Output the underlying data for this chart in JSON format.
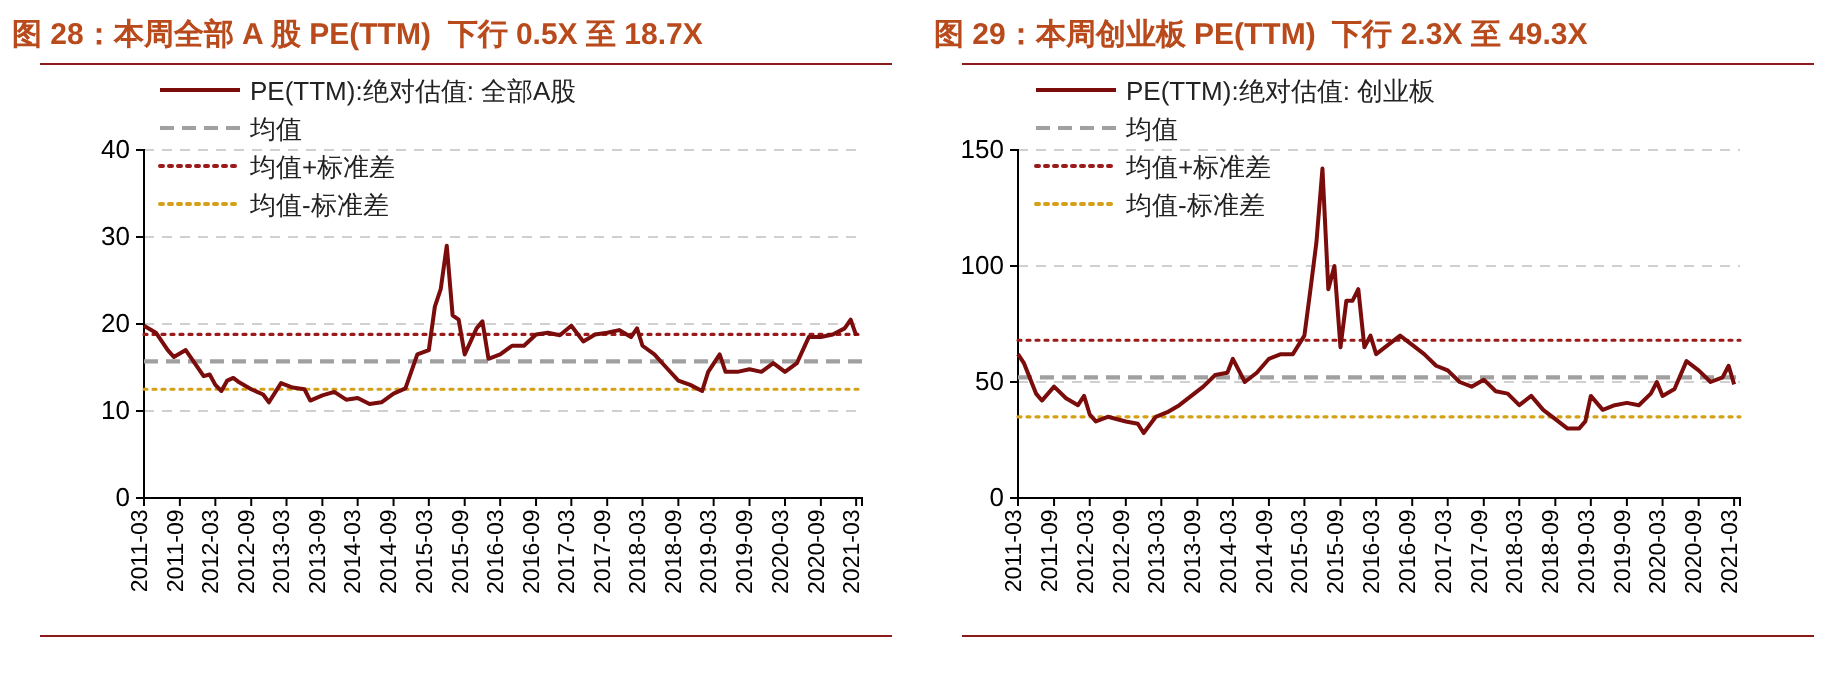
{
  "chart_data": [
    {
      "type": "line",
      "title": "图 28：本周全部 A 股 PE(TTM)  下行 0.5X 至 18.7X",
      "legend": "top left",
      "grid": "y",
      "line_style": "solid",
      "marker": "none",
      "xlim": [
        "2011-03-01",
        "2021-03-31"
      ],
      "ylim": [
        0,
        40
      ],
      "yticks": [
        0,
        10,
        20,
        30,
        40
      ],
      "xticks": [
        {
          "value": "2011-03",
          "label": "2011-03"
        },
        {
          "value": "2011-09",
          "label": "2011-09"
        },
        {
          "value": "2012-03",
          "label": "2012-03"
        },
        {
          "value": "2012-09",
          "label": "2012-09"
        },
        {
          "value": "2013-03",
          "label": "2013-03"
        },
        {
          "value": "2013-09",
          "label": "2013-09"
        },
        {
          "value": "2014-03",
          "label": "2014-03"
        },
        {
          "value": "2014-09",
          "label": "2014-09"
        },
        {
          "value": "2015-03",
          "label": "2015-03"
        },
        {
          "value": "2015-09",
          "label": "2015-09"
        },
        {
          "value": "2016-03",
          "label": "2016-03"
        },
        {
          "value": "2016-09",
          "label": "2016-09"
        },
        {
          "value": "2017-03",
          "label": "2017-03"
        },
        {
          "value": "2017-09",
          "label": "2017-09"
        },
        {
          "value": "2018-03",
          "label": "2018-03"
        },
        {
          "value": "2018-09",
          "label": "2018-09"
        },
        {
          "value": "2019-03",
          "label": "2019-03"
        },
        {
          "value": "2019-09",
          "label": "2019-09"
        },
        {
          "value": "2020-03",
          "label": "2020-03"
        },
        {
          "value": "2020-09",
          "label": "2020-09"
        },
        {
          "value": "2021-03",
          "label": "2021-03"
        }
      ],
      "x": [
        "2011-03",
        "2011-05",
        "2011-07",
        "2011-08",
        "2011-10",
        "2011-11",
        "2012-01",
        "2012-02",
        "2012-03",
        "2012-04",
        "2012-05",
        "2012-06",
        "2012-07",
        "2012-09",
        "2012-11",
        "2012-12",
        "2013-02",
        "2013-04",
        "2013-06",
        "2013-07",
        "2013-09",
        "2013-11",
        "2014-01",
        "2014-03",
        "2014-05",
        "2014-07",
        "2014-09",
        "2014-11",
        "2015-01",
        "2015-03",
        "2015-04",
        "2015-05",
        "2015-06",
        "2015-07",
        "2015-08",
        "2015-09",
        "2015-11",
        "2015-12",
        "2016-01",
        "2016-03",
        "2016-05",
        "2016-07",
        "2016-09",
        "2016-11",
        "2017-01",
        "2017-03",
        "2017-05",
        "2017-07",
        "2017-09",
        "2017-11",
        "2018-01",
        "2018-02",
        "2018-03",
        "2018-05",
        "2018-07",
        "2018-09",
        "2018-11",
        "2019-01",
        "2019-02",
        "2019-04",
        "2019-05",
        "2019-07",
        "2019-09",
        "2019-11",
        "2020-01",
        "2020-03",
        "2020-05",
        "2020-07",
        "2020-09",
        "2020-11",
        "2021-01",
        "2021-02",
        "2021-03"
      ],
      "series": [
        {
          "name": "PE(TTM):绝对估值: 全部A股",
          "color": "#7b0c0c",
          "values": [
            19.8,
            19.0,
            17,
            16.2,
            17,
            16,
            14,
            14.2,
            13,
            12.3,
            13.5,
            13.8,
            13.3,
            12.5,
            11.9,
            11,
            13.2,
            12.7,
            12.5,
            11.2,
            11.8,
            12.2,
            11.3,
            11.5,
            10.8,
            11,
            12,
            12.6,
            16.5,
            17,
            22,
            24,
            29,
            21,
            20.5,
            16.5,
            19.5,
            20.3,
            16,
            16.5,
            17.5,
            17.5,
            18.8,
            19,
            18.7,
            19.8,
            18,
            18.8,
            19,
            19.3,
            18.5,
            19.5,
            17.5,
            16.5,
            15,
            13.5,
            13,
            12.3,
            14.5,
            16.5,
            14.5,
            14.5,
            14.8,
            14.5,
            15.5,
            14.5,
            15.5,
            18.5,
            18.5,
            18.8,
            19.5,
            20.5,
            18.7
          ]
        }
      ],
      "ref_lines": [
        {
          "axis": "y",
          "value": 15.7,
          "label": "均值",
          "color": "#a0a0a0",
          "line_style": "dashed"
        },
        {
          "axis": "y",
          "value": 18.8,
          "label": "均值+标准差",
          "color": "#9b1b1b",
          "line_style": "dotted"
        },
        {
          "axis": "y",
          "value": 12.5,
          "label": "均值-标准差",
          "color": "#d4a017",
          "line_style": "dotted"
        }
      ]
    },
    {
      "type": "line",
      "title": "图 29：本周创业板 PE(TTM)  下行 2.3X 至 49.3X",
      "legend": "top left",
      "grid": "y",
      "line_style": "solid",
      "marker": "none",
      "xlim": [
        "2011-03-01",
        "2021-03-31"
      ],
      "ylim": [
        0,
        150
      ],
      "yticks": [
        0,
        50,
        100,
        150
      ],
      "xticks": [
        {
          "value": "2011-03",
          "label": "2011-03"
        },
        {
          "value": "2011-09",
          "label": "2011-09"
        },
        {
          "value": "2012-03",
          "label": "2012-03"
        },
        {
          "value": "2012-09",
          "label": "2012-09"
        },
        {
          "value": "2013-03",
          "label": "2013-03"
        },
        {
          "value": "2013-09",
          "label": "2013-09"
        },
        {
          "value": "2014-03",
          "label": "2014-03"
        },
        {
          "value": "2014-09",
          "label": "2014-09"
        },
        {
          "value": "2015-03",
          "label": "2015-03"
        },
        {
          "value": "2015-09",
          "label": "2015-09"
        },
        {
          "value": "2016-03",
          "label": "2016-03"
        },
        {
          "value": "2016-09",
          "label": "2016-09"
        },
        {
          "value": "2017-03",
          "label": "2017-03"
        },
        {
          "value": "2017-09",
          "label": "2017-09"
        },
        {
          "value": "2018-03",
          "label": "2018-03"
        },
        {
          "value": "2018-09",
          "label": "2018-09"
        },
        {
          "value": "2019-03",
          "label": "2019-03"
        },
        {
          "value": "2019-09",
          "label": "2019-09"
        },
        {
          "value": "2020-03",
          "label": "2020-03"
        },
        {
          "value": "2020-09",
          "label": "2020-09"
        },
        {
          "value": "2021-03",
          "label": "2021-03"
        }
      ],
      "x": [
        "2011-03",
        "2011-04",
        "2011-06",
        "2011-07",
        "2011-09",
        "2011-11",
        "2012-01",
        "2012-02",
        "2012-03",
        "2012-04",
        "2012-06",
        "2012-09",
        "2012-11",
        "2012-12",
        "2013-02",
        "2013-04",
        "2013-06",
        "2013-08",
        "2013-10",
        "2013-12",
        "2014-02",
        "2014-03",
        "2014-05",
        "2014-07",
        "2014-09",
        "2014-11",
        "2015-01",
        "2015-03",
        "2015-04",
        "2015-05",
        "2015-06",
        "2015-07",
        "2015-08",
        "2015-09",
        "2015-10",
        "2015-11",
        "2015-12",
        "2016-01",
        "2016-02",
        "2016-03",
        "2016-05",
        "2016-07",
        "2016-09",
        "2016-11",
        "2017-01",
        "2017-03",
        "2017-05",
        "2017-07",
        "2017-09",
        "2017-11",
        "2018-01",
        "2018-03",
        "2018-05",
        "2018-07",
        "2018-09",
        "2018-11",
        "2019-01",
        "2019-02",
        "2019-03",
        "2019-05",
        "2019-07",
        "2019-09",
        "2019-11",
        "2020-01",
        "2020-02",
        "2020-03",
        "2020-05",
        "2020-07",
        "2020-09",
        "2020-11",
        "2021-01",
        "2021-02",
        "2021-03"
      ],
      "series": [
        {
          "name": "PE(TTM):绝对估值: 创业板",
          "color": "#7b0c0c",
          "values": [
            62,
            58,
            45,
            42,
            48,
            43,
            40,
            44,
            36,
            33,
            35,
            33,
            32,
            28,
            35,
            37,
            40,
            44,
            48,
            53,
            54,
            60,
            50,
            54,
            60,
            62,
            62,
            70,
            90,
            110,
            142,
            90,
            100,
            65,
            85,
            85,
            90,
            65,
            70,
            62,
            66,
            70,
            66,
            62,
            57,
            55,
            50,
            48,
            51,
            46,
            45,
            40,
            44,
            38,
            34,
            30,
            30,
            33,
            44,
            38,
            40,
            41,
            40,
            45,
            50,
            44,
            47,
            59,
            55,
            50,
            52,
            57,
            49
          ]
        }
      ],
      "ref_lines": [
        {
          "axis": "y",
          "value": 52,
          "label": "均值",
          "color": "#a0a0a0",
          "line_style": "dashed"
        },
        {
          "axis": "y",
          "value": 68,
          "label": "均值+标准差",
          "color": "#9b1b1b",
          "line_style": "dotted"
        },
        {
          "axis": "y",
          "value": 35,
          "label": "均值-标准差",
          "color": "#d4a017",
          "line_style": "dotted"
        }
      ]
    }
  ]
}
